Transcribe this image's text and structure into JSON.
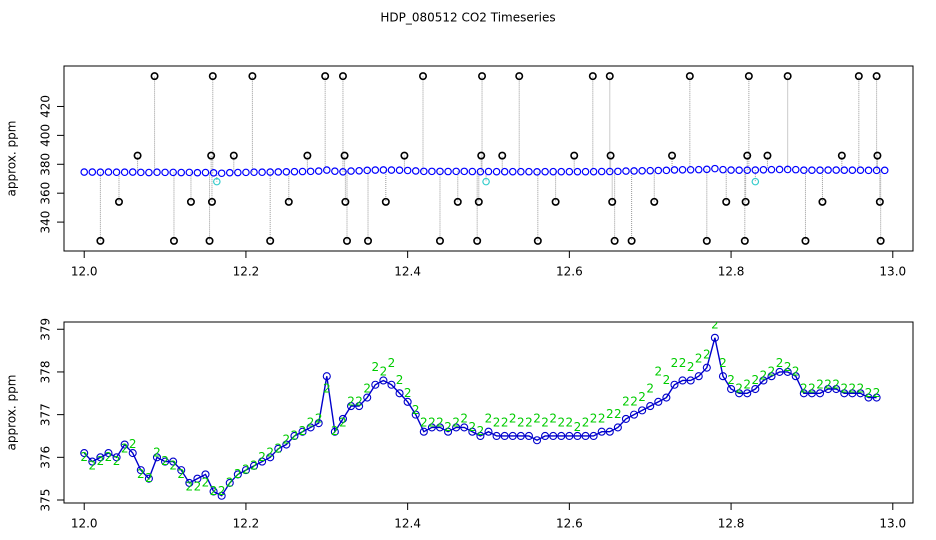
{
  "chart_data": [
    {
      "type": "scatter",
      "title": "HDP_080512  CO2 Timeseries",
      "y_label": "approx. ppm",
      "xlim": [
        11.975,
        13.025
      ],
      "ylim": [
        320,
        448
      ],
      "xticks": [
        {
          "value": 12.0,
          "label": "12.0"
        },
        {
          "value": 12.2,
          "label": "12.2"
        },
        {
          "value": 12.4,
          "label": "12.4"
        },
        {
          "value": 12.6,
          "label": "12.6"
        },
        {
          "value": 12.8,
          "label": "12.8"
        },
        {
          "value": 13.0,
          "label": "13.0"
        }
      ],
      "yticks": [
        340,
        360,
        380,
        400,
        420
      ],
      "series": [
        {
          "color": "#0000ff",
          "x": [
            12.0,
            12.01,
            12.02,
            12.03,
            12.04,
            12.05,
            12.06,
            12.07,
            12.08,
            12.09,
            12.1,
            12.11,
            12.12,
            12.13,
            12.14,
            12.15,
            12.16,
            12.17,
            12.18,
            12.19,
            12.2,
            12.21,
            12.22,
            12.23,
            12.24,
            12.25,
            12.26,
            12.27,
            12.28,
            12.29,
            12.3,
            12.31,
            12.32,
            12.33,
            12.34,
            12.35,
            12.36,
            12.37,
            12.38,
            12.39,
            12.4,
            12.41,
            12.42,
            12.43,
            12.44,
            12.45,
            12.46,
            12.47,
            12.48,
            12.49,
            12.5,
            12.51,
            12.52,
            12.53,
            12.54,
            12.55,
            12.56,
            12.57,
            12.58,
            12.59,
            12.6,
            12.61,
            12.62,
            12.63,
            12.64,
            12.65,
            12.66,
            12.67,
            12.68,
            12.69,
            12.7,
            12.71,
            12.72,
            12.73,
            12.74,
            12.75,
            12.76,
            12.77,
            12.78,
            12.79,
            12.8,
            12.81,
            12.82,
            12.83,
            12.84,
            12.85,
            12.86,
            12.87,
            12.88,
            12.89,
            12.9,
            12.91,
            12.92,
            12.93,
            12.94,
            12.95,
            12.96,
            12.97,
            12.98,
            12.99
          ],
          "values": [
            374.6,
            374.6,
            374.5,
            374.6,
            374.5,
            374.5,
            374.6,
            374.4,
            374.3,
            374.5,
            374.4,
            374.4,
            374.3,
            374.4,
            374.2,
            374.3,
            374.1,
            373.8,
            374.2,
            374.3,
            374.4,
            374.5,
            374.5,
            374.6,
            374.7,
            374.8,
            374.9,
            375.0,
            375.1,
            375.3,
            376.0,
            375.2,
            374.8,
            375.3,
            375.5,
            375.8,
            376.0,
            376.1,
            376.0,
            375.9,
            375.7,
            375.4,
            375.1,
            375.1,
            375.1,
            375.0,
            375.1,
            375.1,
            375.0,
            374.9,
            375.0,
            374.9,
            374.9,
            374.9,
            374.9,
            374.9,
            374.8,
            374.9,
            374.9,
            374.9,
            374.9,
            374.9,
            374.9,
            374.9,
            375.0,
            375.0,
            375.1,
            375.3,
            375.4,
            375.5,
            375.6,
            375.7,
            375.8,
            376.1,
            376.2,
            376.2,
            376.3,
            376.5,
            377.0,
            376.3,
            376.0,
            375.9,
            375.9,
            376.0,
            376.2,
            376.3,
            376.4,
            376.4,
            376.3,
            375.9,
            375.9,
            375.9,
            376.0,
            376.0,
            375.9,
            375.9,
            375.9,
            375.8,
            375.8,
            375.8
          ]
        },
        {
          "color": "#000000",
          "x": [
            12.087,
            12.159,
            12.208,
            12.298,
            12.32,
            12.419,
            12.492,
            12.538,
            12.629,
            12.65,
            12.749,
            12.822,
            12.87,
            12.958,
            12.98,
            12.02,
            12.111,
            12.155,
            12.23,
            12.325,
            12.351,
            12.44,
            12.486,
            12.561,
            12.656,
            12.677,
            12.77,
            12.817,
            12.892,
            12.985,
            12.066,
            12.157,
            12.185,
            12.276,
            12.322,
            12.396,
            12.491,
            12.517,
            12.606,
            12.651,
            12.727,
            12.82,
            12.845,
            12.937,
            12.981,
            12.043,
            12.132,
            12.158,
            12.253,
            12.323,
            12.373,
            12.462,
            12.488,
            12.583,
            12.653,
            12.705,
            12.794,
            12.818,
            12.913,
            12.984
          ],
          "values": [
            441,
            441,
            441,
            441,
            441,
            441,
            441,
            441,
            441,
            441,
            441,
            441,
            441,
            441,
            441,
            327,
            327,
            327,
            327,
            327,
            327,
            327,
            327,
            327,
            327,
            327,
            327,
            327,
            327,
            327,
            386,
            386,
            386,
            386,
            386,
            386,
            386,
            386,
            386,
            386,
            386,
            386,
            386,
            386,
            386,
            354,
            354,
            354,
            354,
            354,
            354,
            354,
            354,
            354,
            354,
            354,
            354,
            354,
            354,
            354
          ]
        },
        {
          "color": "#33cccc",
          "x": [
            12.164,
            12.497,
            12.83
          ],
          "values": [
            368,
            368,
            368
          ]
        }
      ]
    },
    {
      "type": "line",
      "y_label": "approx. ppm",
      "xlim": [
        11.975,
        13.025
      ],
      "ylim": [
        374.93,
        379.17
      ],
      "xticks": [
        {
          "value": 12.0,
          "label": "12.0"
        },
        {
          "value": 12.2,
          "label": "12.2"
        },
        {
          "value": 12.4,
          "label": "12.4"
        },
        {
          "value": 12.6,
          "label": "12.6"
        },
        {
          "value": 12.8,
          "label": "12.8"
        },
        {
          "value": 13.0,
          "label": "13.0"
        }
      ],
      "yticks": [
        375,
        376,
        377,
        378,
        379
      ],
      "x": [
        12.0,
        12.01,
        12.02,
        12.03,
        12.04,
        12.05,
        12.06,
        12.07,
        12.08,
        12.09,
        12.1,
        12.11,
        12.12,
        12.13,
        12.14,
        12.15,
        12.16,
        12.17,
        12.18,
        12.19,
        12.2,
        12.21,
        12.22,
        12.23,
        12.24,
        12.25,
        12.26,
        12.27,
        12.28,
        12.29,
        12.3,
        12.31,
        12.32,
        12.33,
        12.34,
        12.35,
        12.36,
        12.37,
        12.38,
        12.39,
        12.4,
        12.41,
        12.42,
        12.43,
        12.44,
        12.45,
        12.46,
        12.47,
        12.48,
        12.49,
        12.5,
        12.51,
        12.52,
        12.53,
        12.54,
        12.55,
        12.56,
        12.57,
        12.58,
        12.59,
        12.6,
        12.61,
        12.62,
        12.63,
        12.64,
        12.65,
        12.66,
        12.67,
        12.68,
        12.69,
        12.7,
        12.71,
        12.72,
        12.73,
        12.74,
        12.75,
        12.76,
        12.77,
        12.78,
        12.79,
        12.8,
        12.81,
        12.82,
        12.83,
        12.84,
        12.85,
        12.86,
        12.87,
        12.88,
        12.89,
        12.9,
        12.91,
        12.92,
        12.93,
        12.94,
        12.95,
        12.96,
        12.97,
        12.98
      ],
      "series": [
        {
          "color": "#0000cc",
          "values": [
            376.1,
            375.9,
            376.0,
            376.1,
            376.0,
            376.3,
            376.1,
            375.7,
            375.5,
            376.0,
            375.9,
            375.9,
            375.7,
            375.4,
            375.5,
            375.6,
            375.2,
            375.1,
            375.4,
            375.6,
            375.7,
            375.8,
            375.9,
            376.0,
            376.2,
            376.3,
            376.5,
            376.6,
            376.7,
            376.8,
            377.9,
            376.6,
            376.9,
            377.2,
            377.2,
            377.4,
            377.7,
            377.8,
            377.7,
            377.5,
            377.3,
            377.0,
            376.6,
            376.7,
            376.7,
            376.6,
            376.7,
            376.7,
            376.6,
            376.5,
            376.6,
            376.5,
            376.5,
            376.5,
            376.5,
            376.5,
            376.4,
            376.5,
            376.5,
            376.5,
            376.5,
            376.5,
            376.5,
            376.5,
            376.6,
            376.6,
            376.7,
            376.9,
            377.0,
            377.1,
            377.2,
            377.3,
            377.4,
            377.7,
            377.8,
            377.8,
            377.9,
            378.1,
            378.8,
            377.9,
            377.6,
            377.5,
            377.5,
            377.6,
            377.8,
            377.9,
            378.0,
            378.0,
            377.9,
            377.5,
            377.5,
            377.5,
            377.6,
            377.6,
            377.5,
            377.5,
            377.5,
            377.4,
            377.4
          ]
        },
        {
          "color": "#00cc00",
          "marker": "2",
          "values": [
            376.0,
            375.8,
            375.9,
            376.0,
            375.9,
            376.2,
            376.3,
            375.6,
            375.5,
            376.1,
            375.9,
            375.8,
            375.6,
            375.3,
            375.3,
            375.4,
            375.2,
            375.2,
            375.4,
            375.6,
            375.7,
            375.8,
            376.0,
            376.1,
            376.2,
            376.4,
            376.5,
            376.6,
            376.8,
            376.9,
            377.6,
            376.6,
            376.8,
            377.3,
            377.3,
            377.6,
            378.1,
            378.0,
            378.2,
            377.8,
            377.5,
            377.1,
            376.8,
            376.8,
            376.8,
            376.7,
            376.8,
            376.9,
            376.7,
            376.6,
            376.9,
            376.8,
            376.8,
            376.9,
            376.8,
            376.8,
            376.9,
            376.8,
            376.9,
            376.8,
            376.8,
            376.7,
            376.8,
            376.9,
            376.9,
            377.0,
            377.0,
            377.3,
            377.3,
            377.4,
            377.6,
            378.0,
            377.8,
            378.2,
            378.2,
            378.1,
            378.3,
            378.4,
            379.1,
            378.2,
            377.8,
            377.6,
            377.7,
            377.8,
            377.9,
            378.0,
            378.2,
            378.1,
            378.0,
            377.6,
            377.6,
            377.7,
            377.7,
            377.7,
            377.6,
            377.6,
            377.6,
            377.5,
            377.5
          ]
        }
      ]
    }
  ]
}
